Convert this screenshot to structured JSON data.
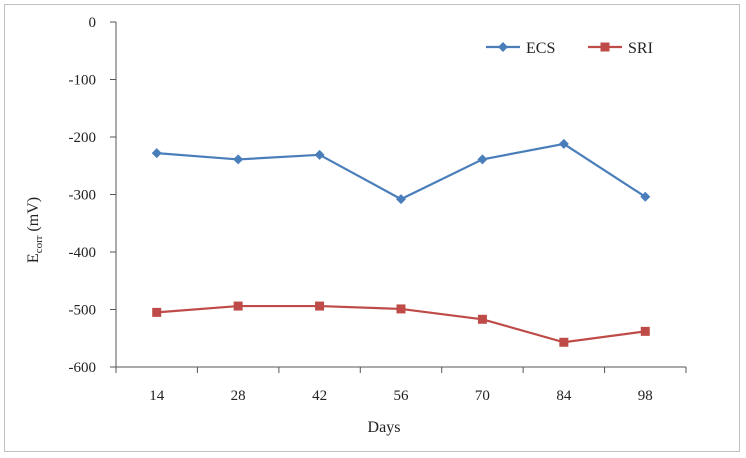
{
  "chart_data": {
    "type": "line",
    "title": "",
    "xlabel": "Days",
    "ylabel_main": "E",
    "ylabel_sub": "corr",
    "ylabel_unit": " (mV)",
    "x": [
      14,
      28,
      42,
      56,
      70,
      84,
      98
    ],
    "x_tick_labels": [
      "14",
      "28",
      "42",
      "56",
      "70",
      "84",
      "98"
    ],
    "ylim": [
      -600,
      0
    ],
    "y_ticks": [
      0,
      -100,
      -200,
      -300,
      -400,
      -500,
      -600
    ],
    "y_tick_labels": [
      "0",
      "-100",
      "-200",
      "-300",
      "-400",
      "-500",
      "-600"
    ],
    "grid": false,
    "legend_position": "top-right",
    "series": [
      {
        "name": "ECS",
        "marker": "diamond",
        "color": "#4a7ebb",
        "values": [
          -228,
          -239,
          -231,
          -308,
          -239,
          -212,
          -304
        ]
      },
      {
        "name": "SRI",
        "marker": "square",
        "color": "#be4b48",
        "values": [
          -505,
          -494,
          -494,
          -499,
          -517,
          -557,
          -538
        ]
      }
    ]
  }
}
